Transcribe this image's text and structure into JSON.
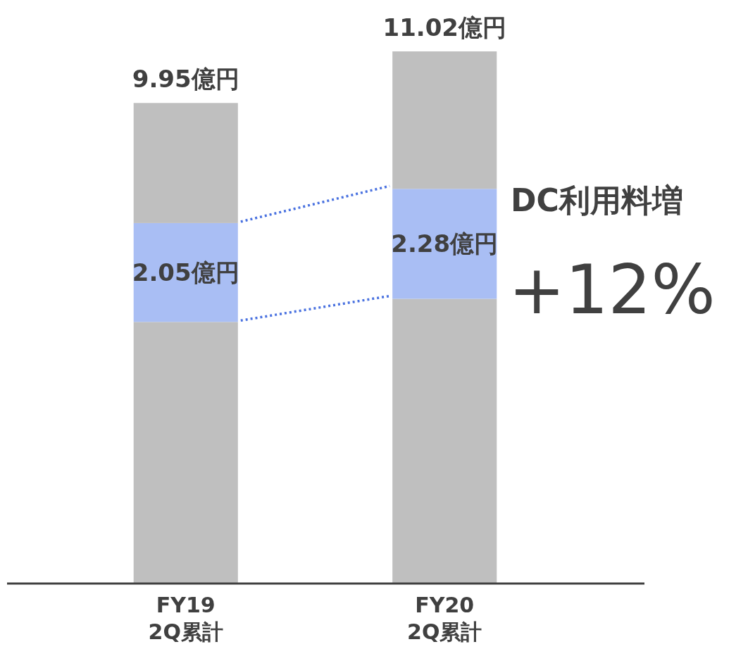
{
  "chart_data": {
    "type": "bar",
    "stacked": true,
    "categories": [
      "FY19\n2Q累計",
      "FY20\n2Q累計"
    ],
    "series": [
      {
        "color": "#bfbfbf",
        "values": [
          5.41,
          5.89
        ]
      },
      {
        "color": "#a9bef4",
        "values": [
          2.05,
          2.28
        ],
        "value_labels": [
          "2.05億円",
          "2.28億円"
        ]
      },
      {
        "color": "#bfbfbf",
        "values": [
          2.49,
          2.85
        ]
      }
    ],
    "totals": [
      "9.95億円",
      "11.02億円"
    ],
    "annotations": [
      "DC利用料増",
      "+12%"
    ]
  }
}
